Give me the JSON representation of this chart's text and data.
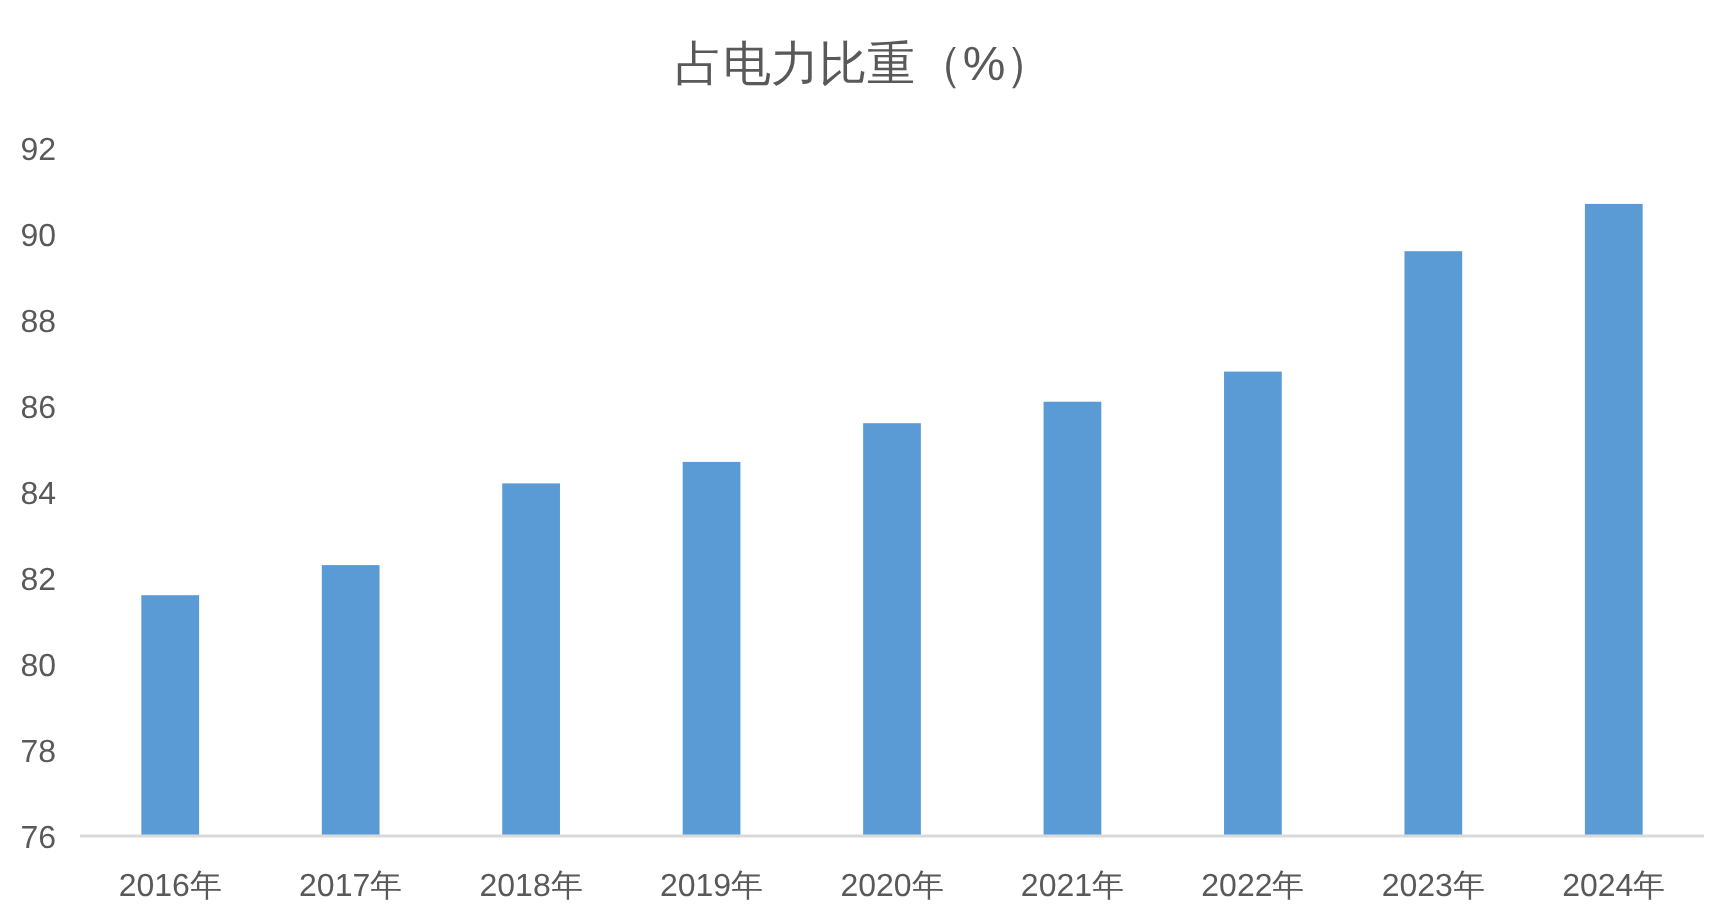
{
  "chart_data": {
    "type": "bar",
    "title": "占电力比重（%）",
    "categories": [
      "2016年",
      "2017年",
      "2018年",
      "2019年",
      "2020年",
      "2021年",
      "2022年",
      "2023年",
      "2024年"
    ],
    "values": [
      81.6,
      82.3,
      84.2,
      84.7,
      85.6,
      86.1,
      86.8,
      89.6,
      90.7
    ],
    "color": "#5b9bd5",
    "ylim": [
      76,
      92
    ],
    "yticks": [
      76,
      78,
      80,
      82,
      84,
      86,
      88,
      90,
      92
    ]
  }
}
